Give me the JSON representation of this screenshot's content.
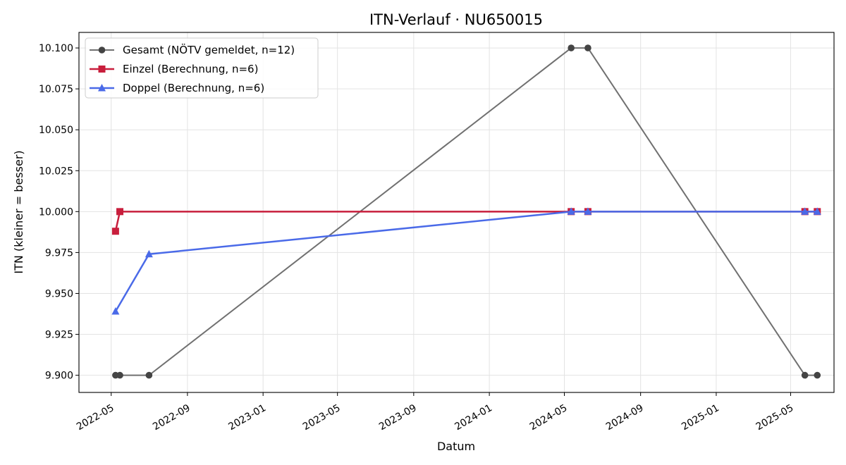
{
  "chart_data": {
    "type": "line",
    "title": "ITN-Verlauf · NU650015",
    "xlabel": "Datum",
    "ylabel": "ITN  (kleiner = besser)",
    "xlim": [
      "2022-03-10",
      "2025-07-10"
    ],
    "ylim": [
      9.8895,
      10.1095
    ],
    "x_ticks": [
      "2022-05",
      "2022-09",
      "2023-01",
      "2023-05",
      "2023-09",
      "2024-01",
      "2024-05",
      "2024-09",
      "2025-01",
      "2025-05"
    ],
    "y_ticks": [
      "9.900",
      "9.925",
      "9.950",
      "9.975",
      "10.000",
      "10.025",
      "10.050",
      "10.075",
      "10.100"
    ],
    "grid": true,
    "legend_position": "top-left",
    "series": [
      {
        "name": "Gesamt (NÖTV gemeldet, n=12)",
        "color": "#707070",
        "marker_color": "#444444",
        "marker": "circle",
        "x": [
          "2022-05-08",
          "2022-05-15",
          "2022-07-01",
          "2024-05-12",
          "2024-06-08",
          "2025-05-24",
          "2025-06-13"
        ],
        "y": [
          9.9,
          9.9,
          9.9,
          10.1,
          10.1,
          9.9,
          9.9
        ]
      },
      {
        "name": "Einzel (Berechnung, n=6)",
        "color": "#c81e3c",
        "marker": "square",
        "x": [
          "2022-05-08",
          "2022-05-15",
          "2024-05-12",
          "2024-06-08",
          "2025-05-24",
          "2025-06-13"
        ],
        "y": [
          9.988,
          10.0,
          10.0,
          10.0,
          10.0,
          10.0
        ]
      },
      {
        "name": "Doppel (Berechnung, n=6)",
        "color": "#4a6ae8",
        "marker": "triangle",
        "x": [
          "2022-05-08",
          "2022-07-01",
          "2024-05-12",
          "2024-06-08",
          "2025-05-24",
          "2025-06-13"
        ],
        "y": [
          9.939,
          9.974,
          10.0,
          10.0,
          10.0,
          10.0
        ]
      }
    ]
  }
}
